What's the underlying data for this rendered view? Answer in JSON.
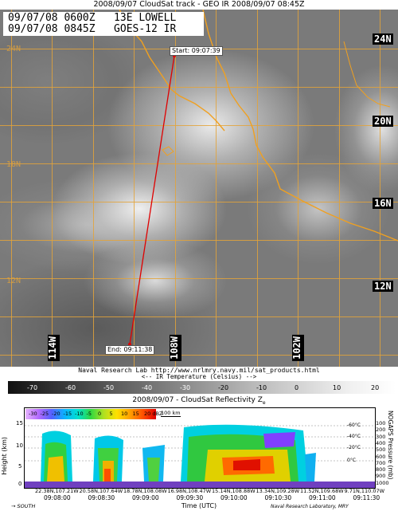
{
  "header": {
    "title": "2008/09/07 CloudSat track - GEO IR   2008/09/07 08:45Z"
  },
  "info_box": {
    "line1": "09/07/08 0600Z   13E LOWELL",
    "line2": "09/07/08 0845Z   GOES-12 IR"
  },
  "latitudes": {
    "l24_bold": "24N",
    "l24_faint": "24N",
    "l20": "20N",
    "l18_faint": "18N",
    "l16": "16N",
    "l12": "12N",
    "l12_faint": "12N"
  },
  "longitudes": {
    "w114": "114W",
    "w108": "108W",
    "w102": "102W"
  },
  "track": {
    "start_label": "Start: 09:07:39",
    "end_label": "End: 09:11:38",
    "color": "#e00000"
  },
  "credit": "Naval Research Lab http://www.nrlmry.navy.mil/sat_products.html",
  "legend": {
    "title": "<--   IR Temperature (Celsius)   -->",
    "ticks": [
      "-70",
      "-60",
      "-50",
      "-40",
      "-30",
      "-20",
      "-10",
      "0",
      "10",
      "20"
    ]
  },
  "cloudsat": {
    "title": "2008/09/07 - CloudSat Reflectivity Z",
    "title_sub": "e",
    "scale_ticks": [
      "-30",
      "-25",
      "-20",
      "-15",
      "-10",
      "-5",
      "0",
      "5",
      "10",
      "15",
      "20 dBZ"
    ],
    "km_label": "100 km",
    "y_label": "Height (km)",
    "y_ticks": [
      "15",
      "10",
      "5",
      "0"
    ],
    "right_label": "NOGAPS Pressure (mb)",
    "pressure_ticks": [
      "100",
      "200",
      "300",
      "400",
      "500",
      "600",
      "700",
      "800",
      "900",
      "1000"
    ],
    "isotherms": [
      "-60°C",
      "-40°C",
      "-20°C",
      "0°C"
    ],
    "locations": [
      "22.38N,107.21W",
      "20.58N,107.64W",
      "18.78N,108.08W",
      "16.98N,108.47W",
      "15.14N,108.88W",
      "13.34N,109.28W",
      "11.52N,109.68W",
      "9.71N,110.07W"
    ],
    "times": [
      "09:08:00",
      "09:08:30",
      "09:09:00",
      "09:09:30",
      "09:10:00",
      "09:10:30",
      "09:11:00",
      "09:11:30"
    ],
    "x_label": "Time (UTC)",
    "south_label": "SOUTH",
    "nrl_credit": "Naval Research Laboratory, MRY"
  }
}
